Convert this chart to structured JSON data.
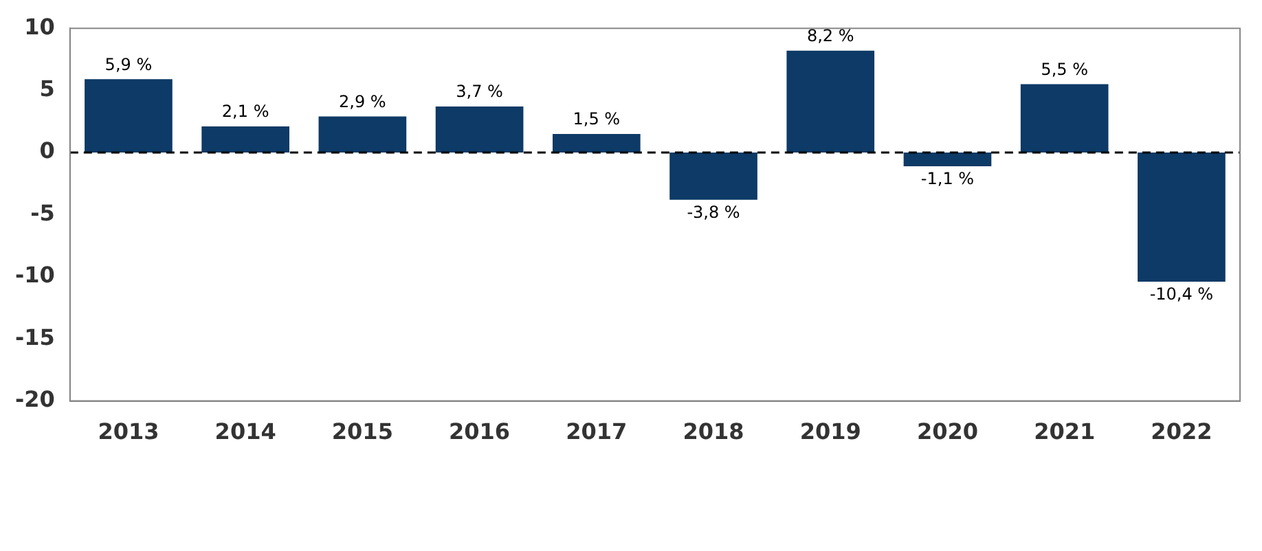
{
  "chart_data": {
    "type": "bar",
    "categories": [
      "2013",
      "2014",
      "2015",
      "2016",
      "2017",
      "2018",
      "2019",
      "2020",
      "2021",
      "2022"
    ],
    "values": [
      5.9,
      2.1,
      2.9,
      3.7,
      1.5,
      -3.8,
      8.2,
      -1.1,
      5.5,
      -10.4
    ],
    "color": "#0d3a66",
    "value_labels": [
      "5,9 %",
      "2,1 %",
      "2,9 %",
      "3,7 %",
      "1,5 %",
      "-3,8 %",
      "8,2 %",
      "-1,1 %",
      "5,5 %",
      "-10,4 %"
    ],
    "ylim": [
      -20,
      10
    ],
    "yticks": [
      -20,
      -15,
      -10,
      -5,
      0,
      5,
      10
    ],
    "ref_lines": [
      {
        "axis": "y",
        "value": 0,
        "line_style": "dashed",
        "color": "#000000"
      }
    ],
    "grid": false,
    "legend": false
  }
}
